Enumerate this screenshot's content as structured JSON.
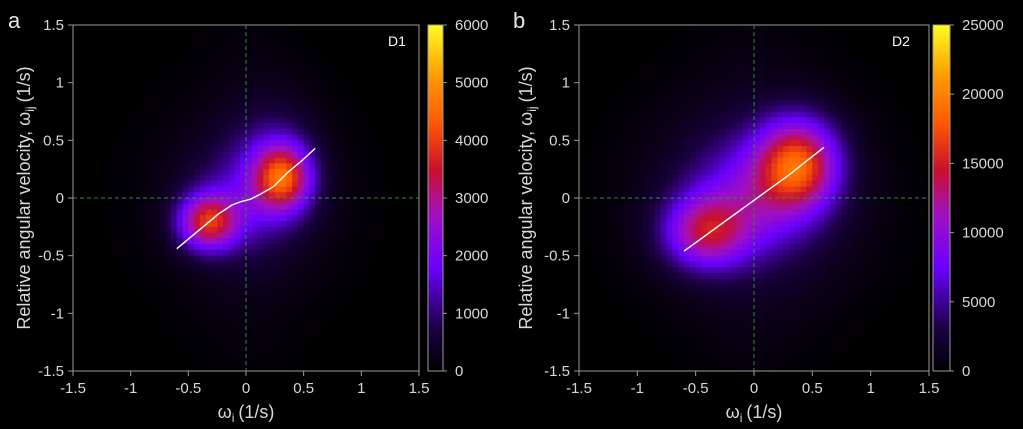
{
  "chart_data": [
    {
      "type": "heatmap",
      "panel_letter": "a",
      "tag": "D1",
      "xlabel_main": "ω",
      "xlabel_sub": "i",
      "xlabel_unit": "(1/s)",
      "ylabel_main": "Relative angular velocity, ω",
      "ylabel_sub": "ij",
      "ylabel_unit": "(1/s)",
      "xlim": [
        -1.5,
        1.5
      ],
      "ylim": [
        -1.5,
        1.5
      ],
      "xticks": [
        -1.5,
        -1,
        -0.5,
        0,
        0.5,
        1,
        1.5
      ],
      "yticks": [
        -1.5,
        -1,
        -0.5,
        0,
        0.5,
        1,
        1.5
      ],
      "colorbar": {
        "min": 0,
        "max": 6000,
        "ticks": [
          0,
          1000,
          2000,
          3000,
          4000,
          5000,
          6000
        ]
      },
      "guide_lines": {
        "x": 0,
        "y": 0
      },
      "blobs": [
        {
          "cx": -0.33,
          "cy": -0.21,
          "sx": 0.18,
          "sy": 0.17,
          "amp": 3200
        },
        {
          "cx": 0.32,
          "cy": 0.18,
          "sx": 0.17,
          "sy": 0.2,
          "amp": 3200
        },
        {
          "cx": 0.0,
          "cy": 0.0,
          "sx": 0.35,
          "sy": 0.35,
          "amp": 1000
        },
        {
          "cx": 0.25,
          "cy": 0.32,
          "sx": 0.26,
          "sy": 0.38,
          "amp": 700
        },
        {
          "cx": 0.0,
          "cy": 0.0,
          "sx": 0.3,
          "sy": 1.6,
          "amp": 120
        },
        {
          "cx": 0.0,
          "cy": 0.0,
          "sx": 0.75,
          "sy": 0.75,
          "amp": 220
        }
      ],
      "fit_line": {
        "x": [
          -0.6,
          -0.48,
          -0.36,
          -0.24,
          -0.12,
          -0.04,
          0.04,
          0.12,
          0.24,
          0.36,
          0.48,
          0.6
        ],
        "y": [
          -0.44,
          -0.34,
          -0.24,
          -0.14,
          -0.06,
          -0.03,
          -0.01,
          0.03,
          0.1,
          0.22,
          0.32,
          0.43
        ]
      }
    },
    {
      "type": "heatmap",
      "panel_letter": "b",
      "tag": "D2",
      "xlabel_main": "ω",
      "xlabel_sub": "i",
      "xlabel_unit": "(1/s)",
      "ylabel_main": "Relative angular velocity, ω",
      "ylabel_sub": "ij",
      "ylabel_unit": "(1/s)",
      "xlim": [
        -1.5,
        1.5
      ],
      "ylim": [
        -1.5,
        1.5
      ],
      "xticks": [
        -1.5,
        -1,
        -0.5,
        0,
        0.5,
        1,
        1.5
      ],
      "yticks": [
        -1.5,
        -1,
        -0.5,
        0,
        0.5,
        1,
        1.5
      ],
      "colorbar": {
        "min": 0,
        "max": 25000,
        "ticks": [
          0,
          5000,
          10000,
          15000,
          20000,
          25000
        ]
      },
      "guide_lines": {
        "x": 0,
        "y": 0
      },
      "blobs": [
        {
          "cx": -0.42,
          "cy": -0.3,
          "sx": 0.25,
          "sy": 0.22,
          "amp": 10500
        },
        {
          "cx": 0.38,
          "cy": 0.3,
          "sx": 0.24,
          "sy": 0.27,
          "amp": 14500
        },
        {
          "cx": 0.0,
          "cy": 0.0,
          "sx": 0.4,
          "sy": 0.36,
          "amp": 6500
        },
        {
          "cx": 0.0,
          "cy": 0.0,
          "sx": 0.72,
          "sy": 0.72,
          "amp": 2000
        },
        {
          "cx": 0.0,
          "cy": 0.0,
          "sx": 0.35,
          "sy": 1.5,
          "amp": 500
        }
      ],
      "fit_line": {
        "x": [
          -0.6,
          -0.45,
          -0.3,
          -0.15,
          0.0,
          0.15,
          0.3,
          0.45,
          0.6
        ],
        "y": [
          -0.46,
          -0.35,
          -0.24,
          -0.13,
          -0.02,
          0.09,
          0.2,
          0.32,
          0.44
        ]
      }
    }
  ]
}
